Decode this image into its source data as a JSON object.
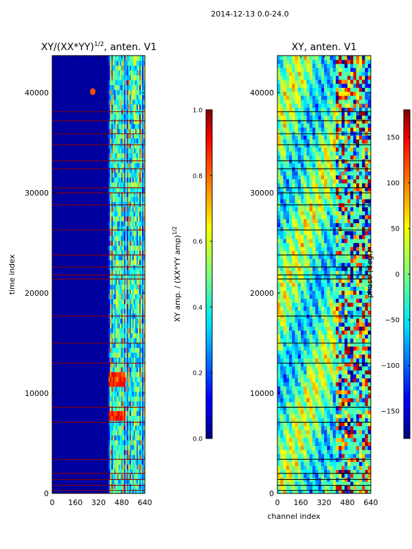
{
  "suptitle": "2014-12-13 0.0-24.0",
  "chart_data": [
    {
      "type": "heatmap",
      "title_main": "XY/(XX*YY)",
      "title_sup": "1/2",
      "title_tail": ", anten. V1",
      "xlabel": "",
      "ylabel": "time index",
      "xlim": [
        0,
        640
      ],
      "ylim": [
        0,
        43700
      ],
      "xticks": [
        0,
        160,
        320,
        480,
        640
      ],
      "yticks": [
        0,
        10000,
        20000,
        30000,
        40000
      ],
      "colorbar": {
        "label_main": "XY amp. / (XX*YY amp)",
        "label_sup": "1/2",
        "ticks": [
          0.0,
          0.2,
          0.4,
          0.6,
          0.8,
          1.0
        ],
        "tick_labels": [
          "0.0",
          "0.2",
          "0.4",
          "0.6",
          "0.8",
          "1.0"
        ],
        "range": [
          0,
          1
        ]
      },
      "flagged_rows": [
        300,
        800,
        1400,
        2000,
        3400,
        7100,
        8600,
        13000,
        15000,
        17700,
        21400,
        21800,
        22600,
        23800,
        26300,
        28800,
        30000,
        30500,
        32400,
        33200,
        34800,
        35900,
        37200,
        38100
      ],
      "bright_band_rows": [
        7500,
        11200
      ],
      "hot_spot": {
        "x": 280,
        "y": 40100,
        "value": 0.8
      }
    },
    {
      "type": "heatmap",
      "title_main": "XY, anten. V1",
      "xlabel": "channel index",
      "ylabel": "",
      "xlim": [
        0,
        640
      ],
      "ylim": [
        0,
        43700
      ],
      "xticks": [
        0,
        160,
        320,
        480,
        640
      ],
      "yticks": [
        0,
        10000,
        20000,
        30000,
        40000
      ],
      "colorbar": {
        "label_main": "phase (deg.)",
        "ticks": [
          -150,
          -100,
          -50,
          0,
          50,
          100,
          150
        ],
        "tick_labels": [
          "−150",
          "−100",
          "−50",
          "0",
          "50",
          "100",
          "150"
        ],
        "range": [
          -180,
          180
        ]
      },
      "flagged_rows": [
        300,
        800,
        1400,
        2000,
        3400,
        7100,
        8600,
        13000,
        15000,
        17700,
        21400,
        21800,
        22600,
        23800,
        26300,
        28800,
        30000,
        30500,
        32400,
        33200,
        34800,
        35900,
        37200,
        38100
      ]
    }
  ],
  "colors": {
    "frame": "#000000",
    "flag_left": "#8a0000",
    "flag_right": "#000000"
  }
}
